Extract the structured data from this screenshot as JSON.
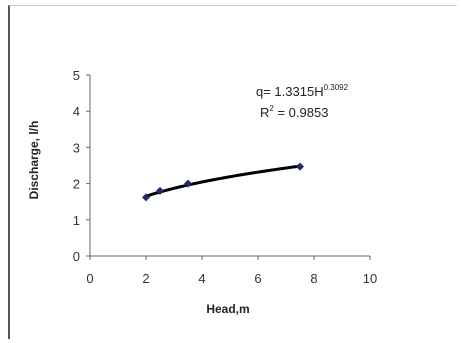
{
  "chart_data": {
    "type": "scatter",
    "title": "",
    "xlabel": "Head,m",
    "ylabel": "Discharge, l/h",
    "xlim": [
      0,
      10
    ],
    "ylim": [
      0,
      5
    ],
    "xticks": [
      0,
      2,
      4,
      6,
      8,
      10
    ],
    "yticks": [
      0,
      1,
      2,
      3,
      4,
      5
    ],
    "grid": false,
    "legend": "none",
    "series": [
      {
        "marker": "diamond",
        "color": "#1f2a6b",
        "points": [
          {
            "x": 2.0,
            "y": 1.62
          },
          {
            "x": 2.5,
            "y": 1.8
          },
          {
            "x": 3.5,
            "y": 2.0
          },
          {
            "x": 7.5,
            "y": 2.47
          }
        ]
      }
    ],
    "trendline": {
      "type": "power",
      "coefficient": 1.3315,
      "exponent": 0.3092,
      "x_range": [
        2.0,
        7.5
      ],
      "color": "#000000"
    },
    "annotations": {
      "equation_prefix": "q= 1.3315H",
      "equation_exponent": "0.3092",
      "r2_prefix": "R",
      "r2_sup": "2",
      "r2_suffix": " = 0.9853"
    }
  }
}
